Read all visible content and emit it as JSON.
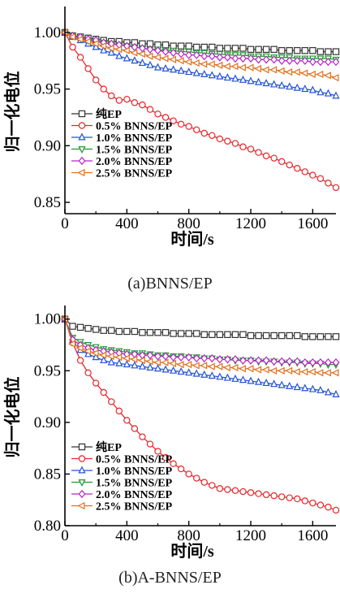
{
  "chart_data": [
    {
      "type": "line",
      "caption": "(a)BNNS/EP",
      "xlabel": "时间/s",
      "ylabel": "归一化电位",
      "xlim": [
        0,
        1750
      ],
      "ylim": [
        0.84,
        1.02
      ],
      "xticks": [
        "0",
        "400",
        "800",
        "1200",
        "1600"
      ],
      "yticks": [
        "0.85",
        "0.90",
        "0.95",
        "1.00"
      ],
      "legend_position": "bottom-left",
      "x": [
        0,
        50,
        100,
        150,
        200,
        250,
        300,
        350,
        400,
        450,
        500,
        550,
        600,
        650,
        700,
        750,
        800,
        850,
        900,
        950,
        1000,
        1050,
        1100,
        1150,
        1200,
        1250,
        1300,
        1350,
        1400,
        1450,
        1500,
        1550,
        1600,
        1650,
        1700,
        1750
      ],
      "series": [
        {
          "name": "纯EP",
          "color": "#333333",
          "marker": "square",
          "values": [
            1.0,
            0.997,
            0.996,
            0.995,
            0.994,
            0.993,
            0.992,
            0.992,
            0.991,
            0.991,
            0.99,
            0.99,
            0.989,
            0.989,
            0.988,
            0.988,
            0.988,
            0.987,
            0.987,
            0.987,
            0.986,
            0.986,
            0.986,
            0.986,
            0.985,
            0.985,
            0.985,
            0.985,
            0.984,
            0.984,
            0.984,
            0.984,
            0.984,
            0.983,
            0.983,
            0.983
          ]
        },
        {
          "name": "0.5% BNNS/EP",
          "color": "#e8262a",
          "marker": "circle",
          "values": [
            1.0,
            0.987,
            0.978,
            0.968,
            0.958,
            0.95,
            0.944,
            0.94,
            0.941,
            0.938,
            0.936,
            0.932,
            0.928,
            0.925,
            0.922,
            0.919,
            0.917,
            0.914,
            0.911,
            0.909,
            0.906,
            0.904,
            0.902,
            0.899,
            0.897,
            0.894,
            0.891,
            0.889,
            0.886,
            0.883,
            0.88,
            0.877,
            0.874,
            0.871,
            0.867,
            0.863
          ]
        },
        {
          "name": "1.0% BNNS/EP",
          "color": "#2454d6",
          "marker": "triangle-up",
          "values": [
            1.0,
            0.996,
            0.993,
            0.99,
            0.987,
            0.984,
            0.982,
            0.979,
            0.977,
            0.975,
            0.973,
            0.971,
            0.969,
            0.968,
            0.967,
            0.966,
            0.965,
            0.964,
            0.963,
            0.962,
            0.961,
            0.96,
            0.959,
            0.958,
            0.957,
            0.956,
            0.955,
            0.954,
            0.953,
            0.952,
            0.951,
            0.95,
            0.949,
            0.947,
            0.946,
            0.944
          ]
        },
        {
          "name": "1.5% BNNS/EP",
          "color": "#1f9a2b",
          "marker": "triangle-down",
          "values": [
            1.0,
            0.997,
            0.995,
            0.993,
            0.992,
            0.991,
            0.99,
            0.989,
            0.988,
            0.987,
            0.986,
            0.985,
            0.985,
            0.984,
            0.984,
            0.983,
            0.983,
            0.982,
            0.982,
            0.981,
            0.981,
            0.98,
            0.98,
            0.98,
            0.979,
            0.979,
            0.979,
            0.978,
            0.978,
            0.978,
            0.977,
            0.977,
            0.977,
            0.977,
            0.977,
            0.976
          ]
        },
        {
          "name": "2.0% BNNS/EP",
          "color": "#b526c6",
          "marker": "diamond",
          "values": [
            1.0,
            0.997,
            0.996,
            0.994,
            0.993,
            0.991,
            0.99,
            0.989,
            0.988,
            0.987,
            0.986,
            0.985,
            0.984,
            0.983,
            0.982,
            0.981,
            0.98,
            0.98,
            0.979,
            0.979,
            0.978,
            0.978,
            0.977,
            0.977,
            0.977,
            0.976,
            0.976,
            0.976,
            0.975,
            0.975,
            0.975,
            0.975,
            0.974,
            0.974,
            0.974,
            0.974
          ]
        },
        {
          "name": "2.5% BNNS/EP",
          "color": "#e0701e",
          "marker": "triangle-left",
          "values": [
            1.0,
            0.996,
            0.994,
            0.992,
            0.99,
            0.988,
            0.986,
            0.985,
            0.984,
            0.982,
            0.981,
            0.979,
            0.978,
            0.977,
            0.976,
            0.975,
            0.974,
            0.973,
            0.972,
            0.972,
            0.971,
            0.97,
            0.97,
            0.969,
            0.969,
            0.968,
            0.967,
            0.967,
            0.966,
            0.965,
            0.965,
            0.964,
            0.963,
            0.963,
            0.962,
            0.96
          ]
        }
      ]
    },
    {
      "type": "line",
      "caption": "(b)A-BNNS/EP",
      "xlabel": "时间/s",
      "ylabel": "归一化电位",
      "xlim": [
        0,
        1750
      ],
      "ylim": [
        0.8,
        1.01
      ],
      "xticks": [
        "0",
        "400",
        "800",
        "1200",
        "1600"
      ],
      "yticks": [
        "0.80",
        "0.85",
        "0.90",
        "0.95",
        "1.00"
      ],
      "legend_position": "bottom-left",
      "x": [
        0,
        50,
        100,
        150,
        200,
        250,
        300,
        350,
        400,
        450,
        500,
        550,
        600,
        650,
        700,
        750,
        800,
        850,
        900,
        950,
        1000,
        1050,
        1100,
        1150,
        1200,
        1250,
        1300,
        1350,
        1400,
        1450,
        1500,
        1550,
        1600,
        1650,
        1700,
        1750
      ],
      "series": [
        {
          "name": "纯EP",
          "color": "#333333",
          "marker": "square",
          "values": [
            1.0,
            0.993,
            0.992,
            0.991,
            0.99,
            0.989,
            0.989,
            0.988,
            0.988,
            0.988,
            0.987,
            0.987,
            0.987,
            0.987,
            0.986,
            0.986,
            0.986,
            0.986,
            0.985,
            0.985,
            0.985,
            0.985,
            0.985,
            0.985,
            0.984,
            0.984,
            0.984,
            0.984,
            0.984,
            0.984,
            0.984,
            0.983,
            0.983,
            0.983,
            0.983,
            0.983
          ]
        },
        {
          "name": "0.5% BNNS/EP",
          "color": "#e8262a",
          "marker": "circle",
          "values": [
            1.0,
            0.977,
            0.96,
            0.948,
            0.938,
            0.929,
            0.92,
            0.911,
            0.902,
            0.894,
            0.886,
            0.879,
            0.872,
            0.866,
            0.86,
            0.855,
            0.85,
            0.846,
            0.842,
            0.839,
            0.836,
            0.835,
            0.834,
            0.833,
            0.832,
            0.831,
            0.83,
            0.829,
            0.828,
            0.827,
            0.826,
            0.824,
            0.822,
            0.82,
            0.818,
            0.815
          ]
        },
        {
          "name": "1.0% BNNS/EP",
          "color": "#2454d6",
          "marker": "triangle-up",
          "values": [
            1.0,
            0.978,
            0.97,
            0.966,
            0.963,
            0.96,
            0.958,
            0.957,
            0.956,
            0.955,
            0.954,
            0.953,
            0.952,
            0.951,
            0.95,
            0.949,
            0.948,
            0.947,
            0.946,
            0.945,
            0.944,
            0.943,
            0.942,
            0.941,
            0.94,
            0.939,
            0.938,
            0.937,
            0.936,
            0.935,
            0.934,
            0.933,
            0.932,
            0.931,
            0.929,
            0.927
          ]
        },
        {
          "name": "1.5% BNNS/EP",
          "color": "#1f9a2b",
          "marker": "triangle-down",
          "values": [
            1.0,
            0.982,
            0.978,
            0.975,
            0.973,
            0.971,
            0.97,
            0.969,
            0.968,
            0.967,
            0.967,
            0.966,
            0.965,
            0.965,
            0.964,
            0.964,
            0.963,
            0.963,
            0.962,
            0.962,
            0.961,
            0.961,
            0.96,
            0.96,
            0.96,
            0.959,
            0.959,
            0.959,
            0.958,
            0.958,
            0.958,
            0.957,
            0.957,
            0.957,
            0.956,
            0.956
          ]
        },
        {
          "name": "2.0% BNNS/EP",
          "color": "#b526c6",
          "marker": "diamond",
          "values": [
            1.0,
            0.98,
            0.975,
            0.972,
            0.97,
            0.969,
            0.968,
            0.967,
            0.966,
            0.966,
            0.965,
            0.965,
            0.964,
            0.964,
            0.963,
            0.963,
            0.963,
            0.962,
            0.962,
            0.962,
            0.961,
            0.961,
            0.961,
            0.96,
            0.96,
            0.96,
            0.96,
            0.959,
            0.959,
            0.959,
            0.959,
            0.958,
            0.958,
            0.958,
            0.958,
            0.958
          ]
        },
        {
          "name": "2.5% BNNS/EP",
          "color": "#e0701e",
          "marker": "triangle-left",
          "values": [
            1.0,
            0.976,
            0.972,
            0.969,
            0.967,
            0.965,
            0.964,
            0.963,
            0.962,
            0.961,
            0.96,
            0.959,
            0.958,
            0.958,
            0.957,
            0.956,
            0.956,
            0.955,
            0.955,
            0.954,
            0.954,
            0.953,
            0.953,
            0.952,
            0.952,
            0.951,
            0.951,
            0.95,
            0.95,
            0.95,
            0.949,
            0.949,
            0.949,
            0.948,
            0.948,
            0.948
          ]
        }
      ]
    }
  ]
}
